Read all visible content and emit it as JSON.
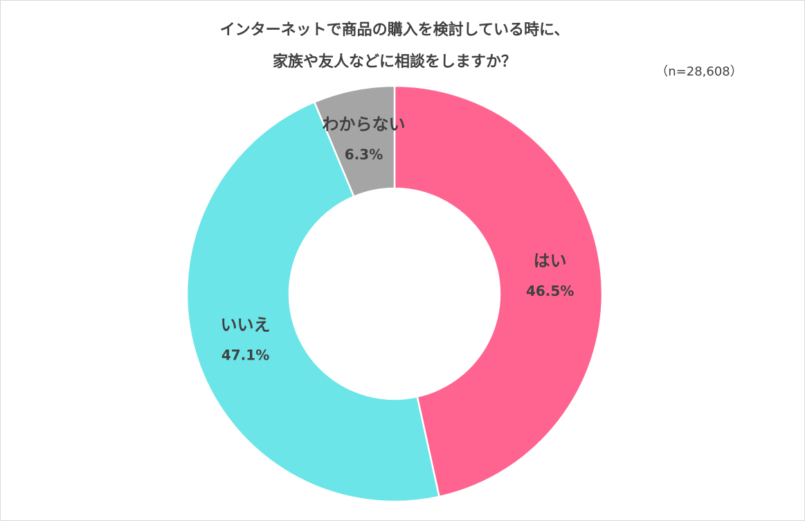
{
  "chart_data": {
    "type": "donut",
    "title": [
      "インターネットで商品の購入を検討している時に、",
      "家族や友人などに相談をしますか？"
    ],
    "subtitle": "（n=28,608）",
    "categories": [
      "はい",
      "いいえ",
      "わからない"
    ],
    "values": [
      46.5,
      47.1,
      6.3
    ],
    "value_labels": [
      "46.5%",
      "47.1%",
      "6.3%"
    ],
    "colors": [
      "#ff6491",
      "#6ce5e8",
      "#a5a5a5"
    ]
  }
}
